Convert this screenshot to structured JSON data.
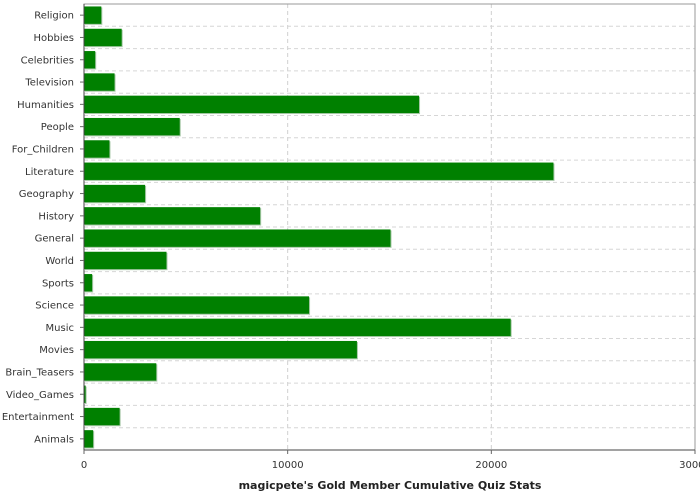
{
  "chart_data": {
    "type": "bar",
    "orientation": "horizontal",
    "title": "",
    "xlabel": "magicpete's Gold Member Cumulative Quiz Stats",
    "ylabel": "",
    "xlim": [
      0,
      30000
    ],
    "x_ticks": [
      "0",
      "10000",
      "20000",
      "30000"
    ],
    "grid": true,
    "bar_color": "#008000",
    "categories": [
      "Religion",
      "Hobbies",
      "Celebrities",
      "Television",
      "Humanities",
      "People",
      "For_Children",
      "Literature",
      "Geography",
      "History",
      "General",
      "World",
      "Sports",
      "Science",
      "Music",
      "Movies",
      "Brain_Teasers",
      "Video_Games",
      "Entertainment",
      "Animals"
    ],
    "values": [
      850,
      1850,
      550,
      1500,
      16450,
      4700,
      1250,
      23050,
      3000,
      8650,
      15050,
      4050,
      400,
      11050,
      20950,
      13400,
      3550,
      80,
      1750,
      450
    ]
  }
}
